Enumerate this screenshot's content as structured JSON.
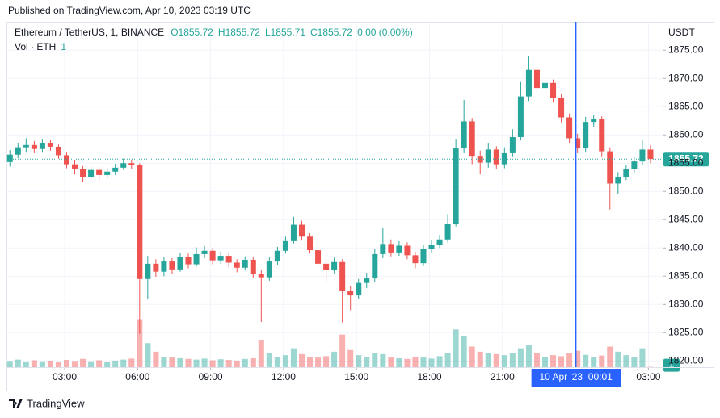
{
  "header": {
    "published": "Published on TradingView.com, Apr 10, 2023 03:19 UTC",
    "brand": "TradingView"
  },
  "chart_data": {
    "type": "candlestick",
    "legend": {
      "symbol": "Ethereum / TetherUS, 1, BINANCE",
      "ohlc": [
        "O1855.72",
        "H1855.72",
        "L1855.71",
        "C1855.72"
      ],
      "change": "0.00 (0.00%)",
      "volume_label": "Vol · ETH"
    },
    "currency": "USDT",
    "up_color": "#26a69a",
    "down_color": "#ef5350",
    "grid": true,
    "x": [
      45,
      65,
      85,
      105,
      125,
      145,
      165,
      185,
      205,
      225,
      245,
      265,
      285,
      305,
      325,
      345,
      365,
      385,
      405,
      425,
      445,
      465,
      485,
      505,
      525,
      545,
      565,
      585,
      605,
      625,
      645,
      665,
      685,
      705,
      725,
      745,
      765,
      785,
      805,
      825,
      845,
      865,
      885,
      905,
      925,
      945,
      965,
      985,
      1005,
      1025,
      1045,
      1065,
      1085,
      1105,
      1125,
      1145,
      1165,
      1185,
      1205,
      1225,
      1245,
      1265,
      1285,
      1305,
      1325,
      1345,
      1365,
      1385,
      1405,
      1425,
      1445,
      1465,
      1485,
      1505,
      1525,
      1545,
      1565,
      1585,
      1605,
      1625
    ],
    "open": [
      1855.2,
      1856.5,
      1857.8,
      1858.2,
      1857.5,
      1858.6,
      1857.9,
      1856.4,
      1854.8,
      1853.9,
      1852.6,
      1853.8,
      1852.9,
      1853.5,
      1854.2,
      1855.0,
      1854.6,
      1834.5,
      1837.2,
      1835.8,
      1837.6,
      1836.2,
      1838.4,
      1837.1,
      1838.9,
      1839.5,
      1837.8,
      1838.6,
      1837.4,
      1836.5,
      1837.9,
      1835.4,
      1834.8,
      1837.6,
      1839.5,
      1841.2,
      1844.1,
      1842.0,
      1839.6,
      1837.2,
      1836.1,
      1837.5,
      1832.4,
      1831.6,
      1833.8,
      1834.6,
      1838.9,
      1840.7,
      1839.2,
      1840.4,
      1838.7,
      1837.3,
      1839.8,
      1840.6,
      1841.5,
      1844.3,
      1857.6,
      1862.4,
      1856.3,
      1855.1,
      1857.4,
      1854.8,
      1856.9,
      1859.6,
      1866.8,
      1871.5,
      1868.3,
      1869.2,
      1866.5,
      1863.1,
      1859.4,
      1857.6,
      1862.3,
      1862.8,
      1857.1,
      1851.4,
      1852.6,
      1853.9,
      1855.3,
      1857.4
    ],
    "high": [
      1857.3,
      1858.6,
      1859.4,
      1858.9,
      1859.3,
      1859.1,
      1858.3,
      1857.0,
      1855.6,
      1854.5,
      1854.4,
      1854.3,
      1854.2,
      1854.9,
      1855.8,
      1855.6,
      1855.0,
      1838.6,
      1838.0,
      1838.4,
      1838.2,
      1839.2,
      1839.0,
      1840.1,
      1840.4,
      1840.0,
      1839.4,
      1839.0,
      1838.0,
      1838.5,
      1838.3,
      1836.1,
      1838.3,
      1840.2,
      1842.0,
      1845.5,
      1844.8,
      1842.6,
      1840.2,
      1838.0,
      1838.3,
      1838.0,
      1833.2,
      1834.5,
      1835.6,
      1839.8,
      1843.6,
      1841.5,
      1841.2,
      1841.0,
      1839.3,
      1840.5,
      1841.4,
      1842.3,
      1846.0,
      1859.3,
      1866.2,
      1863.0,
      1857.2,
      1858.6,
      1858.0,
      1857.8,
      1861.0,
      1869.5,
      1874.0,
      1872.2,
      1870.1,
      1869.8,
      1867.2,
      1863.8,
      1860.2,
      1863.2,
      1863.6,
      1863.3,
      1857.8,
      1853.4,
      1854.6,
      1856.1,
      1859.1,
      1858.2
    ],
    "low": [
      1854.4,
      1855.9,
      1857.0,
      1856.8,
      1857.0,
      1857.2,
      1855.8,
      1854.1,
      1853.0,
      1851.7,
      1852.0,
      1851.9,
      1852.3,
      1852.9,
      1853.8,
      1853.9,
      1824.8,
      1831.0,
      1834.9,
      1835.0,
      1835.4,
      1835.8,
      1836.4,
      1836.7,
      1838.2,
      1837.1,
      1837.2,
      1836.6,
      1835.7,
      1836.0,
      1834.7,
      1826.9,
      1834.2,
      1837.0,
      1839.0,
      1840.8,
      1841.3,
      1839.0,
      1836.5,
      1833.9,
      1835.5,
      1826.8,
      1829.0,
      1831.0,
      1832.9,
      1834.0,
      1838.2,
      1838.5,
      1838.6,
      1838.0,
      1836.4,
      1836.8,
      1839.2,
      1840.0,
      1841.0,
      1843.8,
      1856.9,
      1854.8,
      1853.0,
      1854.2,
      1853.9,
      1854.1,
      1856.2,
      1859.0,
      1866.0,
      1867.4,
      1867.0,
      1865.7,
      1862.2,
      1858.6,
      1856.8,
      1857.0,
      1861.4,
      1856.2,
      1846.8,
      1849.6,
      1852.0,
      1853.2,
      1854.7,
      1855.0
    ],
    "close": [
      1856.5,
      1857.8,
      1858.2,
      1857.5,
      1858.6,
      1857.9,
      1856.4,
      1854.8,
      1853.9,
      1852.6,
      1853.8,
      1852.9,
      1853.5,
      1854.2,
      1855.0,
      1854.6,
      1834.5,
      1837.2,
      1835.8,
      1837.6,
      1836.2,
      1838.4,
      1837.1,
      1838.9,
      1839.5,
      1837.8,
      1838.6,
      1837.4,
      1836.5,
      1837.9,
      1835.4,
      1834.8,
      1837.6,
      1839.5,
      1841.2,
      1844.1,
      1842.0,
      1839.6,
      1837.2,
      1836.1,
      1837.5,
      1832.4,
      1831.6,
      1833.8,
      1834.6,
      1838.9,
      1840.7,
      1839.2,
      1840.4,
      1838.7,
      1837.3,
      1839.8,
      1840.6,
      1841.5,
      1844.3,
      1857.6,
      1862.4,
      1856.3,
      1855.1,
      1857.4,
      1854.8,
      1856.9,
      1859.6,
      1866.8,
      1871.5,
      1868.3,
      1869.2,
      1866.5,
      1863.1,
      1859.4,
      1857.6,
      1862.3,
      1862.8,
      1857.1,
      1851.4,
      1852.6,
      1853.9,
      1855.3,
      1857.4,
      1855.72
    ],
    "volume": [
      18,
      22,
      15,
      20,
      17,
      19,
      16,
      21,
      18,
      24,
      17,
      20,
      15,
      19,
      22,
      25,
      140,
      70,
      45,
      30,
      28,
      26,
      24,
      22,
      25,
      20,
      23,
      21,
      19,
      24,
      26,
      80,
      40,
      30,
      35,
      55,
      38,
      30,
      28,
      32,
      45,
      95,
      50,
      35,
      30,
      40,
      38,
      28,
      26,
      24,
      30,
      28,
      25,
      32,
      40,
      110,
      90,
      60,
      45,
      40,
      38,
      35,
      42,
      55,
      65,
      40,
      30,
      35,
      32,
      40,
      48,
      36,
      30,
      34,
      60,
      45,
      35,
      30,
      55,
      1
    ],
    "xlim": [
      40.5,
      1655
    ],
    "ylim": [
      1818.9,
      1879.6
    ],
    "y2lim": [
      0,
      1000
    ],
    "xticks": [
      {
        "value": 180,
        "label": "03:00"
      },
      {
        "value": 360,
        "label": "06:00"
      },
      {
        "value": 540,
        "label": "09:00"
      },
      {
        "value": 720,
        "label": "12:00"
      },
      {
        "value": 900,
        "label": "15:00"
      },
      {
        "value": 1080,
        "label": "18:00"
      },
      {
        "value": 1260,
        "label": "21:00"
      },
      {
        "value": 1620,
        "label": "03:00"
      }
    ],
    "yticks": [
      {
        "value": 1820,
        "label": "1820.00"
      },
      {
        "value": 1825,
        "label": "1825.00"
      },
      {
        "value": 1830,
        "label": "1830.00"
      },
      {
        "value": 1835,
        "label": "1835.00"
      },
      {
        "value": 1840,
        "label": "1840.00"
      },
      {
        "value": 1845,
        "label": "1845.00"
      },
      {
        "value": 1850,
        "label": "1850.00"
      },
      {
        "value": 1855,
        "label": "1855.00"
      },
      {
        "value": 1860,
        "label": "1860.00"
      },
      {
        "value": 1865,
        "label": "1865.00"
      },
      {
        "value": 1870,
        "label": "1870.00"
      },
      {
        "value": 1875,
        "label": "1875.00"
      }
    ],
    "crosshair": {
      "x": 1441,
      "label": "10 Apr '23  00:01",
      "color": "#2962ff"
    }
  }
}
